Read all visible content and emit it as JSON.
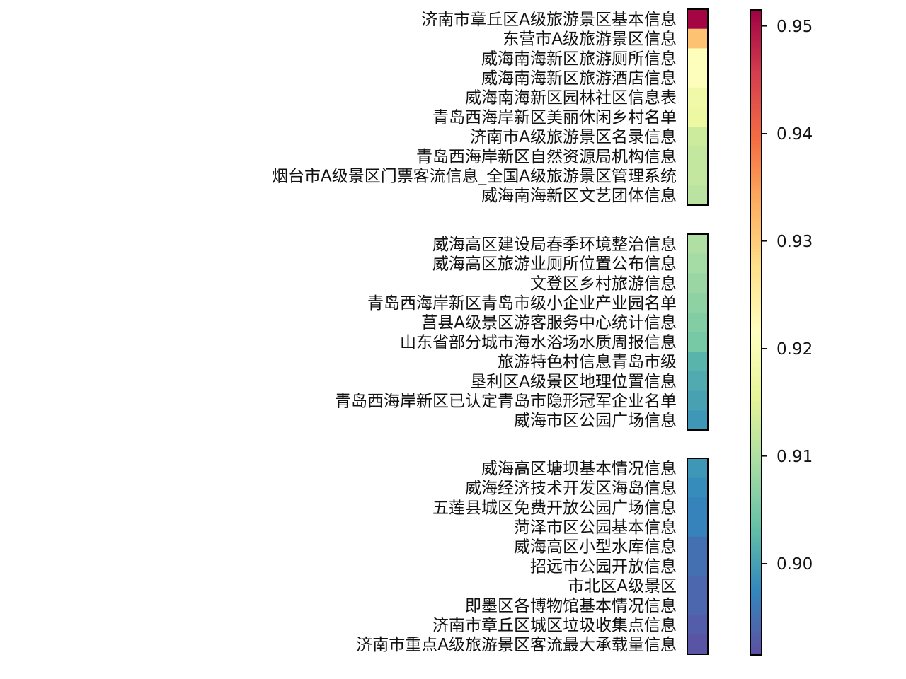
{
  "chart_data": {
    "type": "heatmap",
    "colormap": "Spectral_r",
    "colorbar": {
      "vmin": 0.8915,
      "vmax": 0.9515,
      "ticks": [
        0.9,
        0.91,
        0.92,
        0.93,
        0.94,
        0.95
      ],
      "tick_labels": [
        "0.90",
        "0.91",
        "0.92",
        "0.93",
        "0.94",
        "0.95"
      ]
    },
    "groups": [
      {
        "rows": [
          {
            "label": "济南市章丘区A级旅游景区基本信息",
            "value": 0.951
          },
          {
            "label": "东营市A级旅游景区信息",
            "value": 0.931
          },
          {
            "label": "威海南海新区旅游厕所信息",
            "value": 0.921
          },
          {
            "label": "威海南海新区旅游酒店信息",
            "value": 0.921
          },
          {
            "label": "威海南海新区园林社区信息表",
            "value": 0.918
          },
          {
            "label": "青岛西海岸新区美丽休闲乡村名单",
            "value": 0.917
          },
          {
            "label": "济南市A级旅游景区名录信息",
            "value": 0.913
          },
          {
            "label": "青岛西海岸新区自然资源局机构信息",
            "value": 0.912
          },
          {
            "label": "烟台市A级景区门票客流信息_全国A级旅游景区管理系统",
            "value": 0.912
          },
          {
            "label": "威海南海新区文艺团体信息",
            "value": 0.911
          }
        ]
      },
      {
        "rows": [
          {
            "label": "威海高区建设局春季环境整治信息",
            "value": 0.91
          },
          {
            "label": "威海高区旅游业厕所位置公布信息",
            "value": 0.909
          },
          {
            "label": "文登区乡村旅游信息",
            "value": 0.908
          },
          {
            "label": "青岛西海岸新区青岛市级小企业产业园名单",
            "value": 0.907
          },
          {
            "label": "莒县A级景区游客服务中心统计信息",
            "value": 0.906
          },
          {
            "label": "山东省部分城市海水浴场水质周报信息",
            "value": 0.905
          },
          {
            "label": "旅游特色村信息青岛市级",
            "value": 0.902
          },
          {
            "label": "垦利区A级景区地理位置信息",
            "value": 0.901
          },
          {
            "label": "青岛西海岸新区已认定青岛市隐形冠军企业名单",
            "value": 0.9
          },
          {
            "label": "威海市区公园广场信息",
            "value": 0.899
          }
        ]
      },
      {
        "rows": [
          {
            "label": "威海高区塘坝基本情况信息",
            "value": 0.899
          },
          {
            "label": "威海经济技术开发区海岛信息",
            "value": 0.898
          },
          {
            "label": "五莲县城区免费开放公园广场信息",
            "value": 0.897
          },
          {
            "label": "菏泽市区公园基本信息",
            "value": 0.897
          },
          {
            "label": "威海高区小型水库信息",
            "value": 0.895
          },
          {
            "label": "招远市公园开放信息",
            "value": 0.895
          },
          {
            "label": "市北区A级景区",
            "value": 0.894
          },
          {
            "label": "即墨区各博物馆基本情况信息",
            "value": 0.894
          },
          {
            "label": "济南市章丘区城区垃圾收集点信息",
            "value": 0.893
          },
          {
            "label": "济南市重点A级旅游景区客流最大承载量信息",
            "value": 0.892
          }
        ]
      }
    ]
  }
}
